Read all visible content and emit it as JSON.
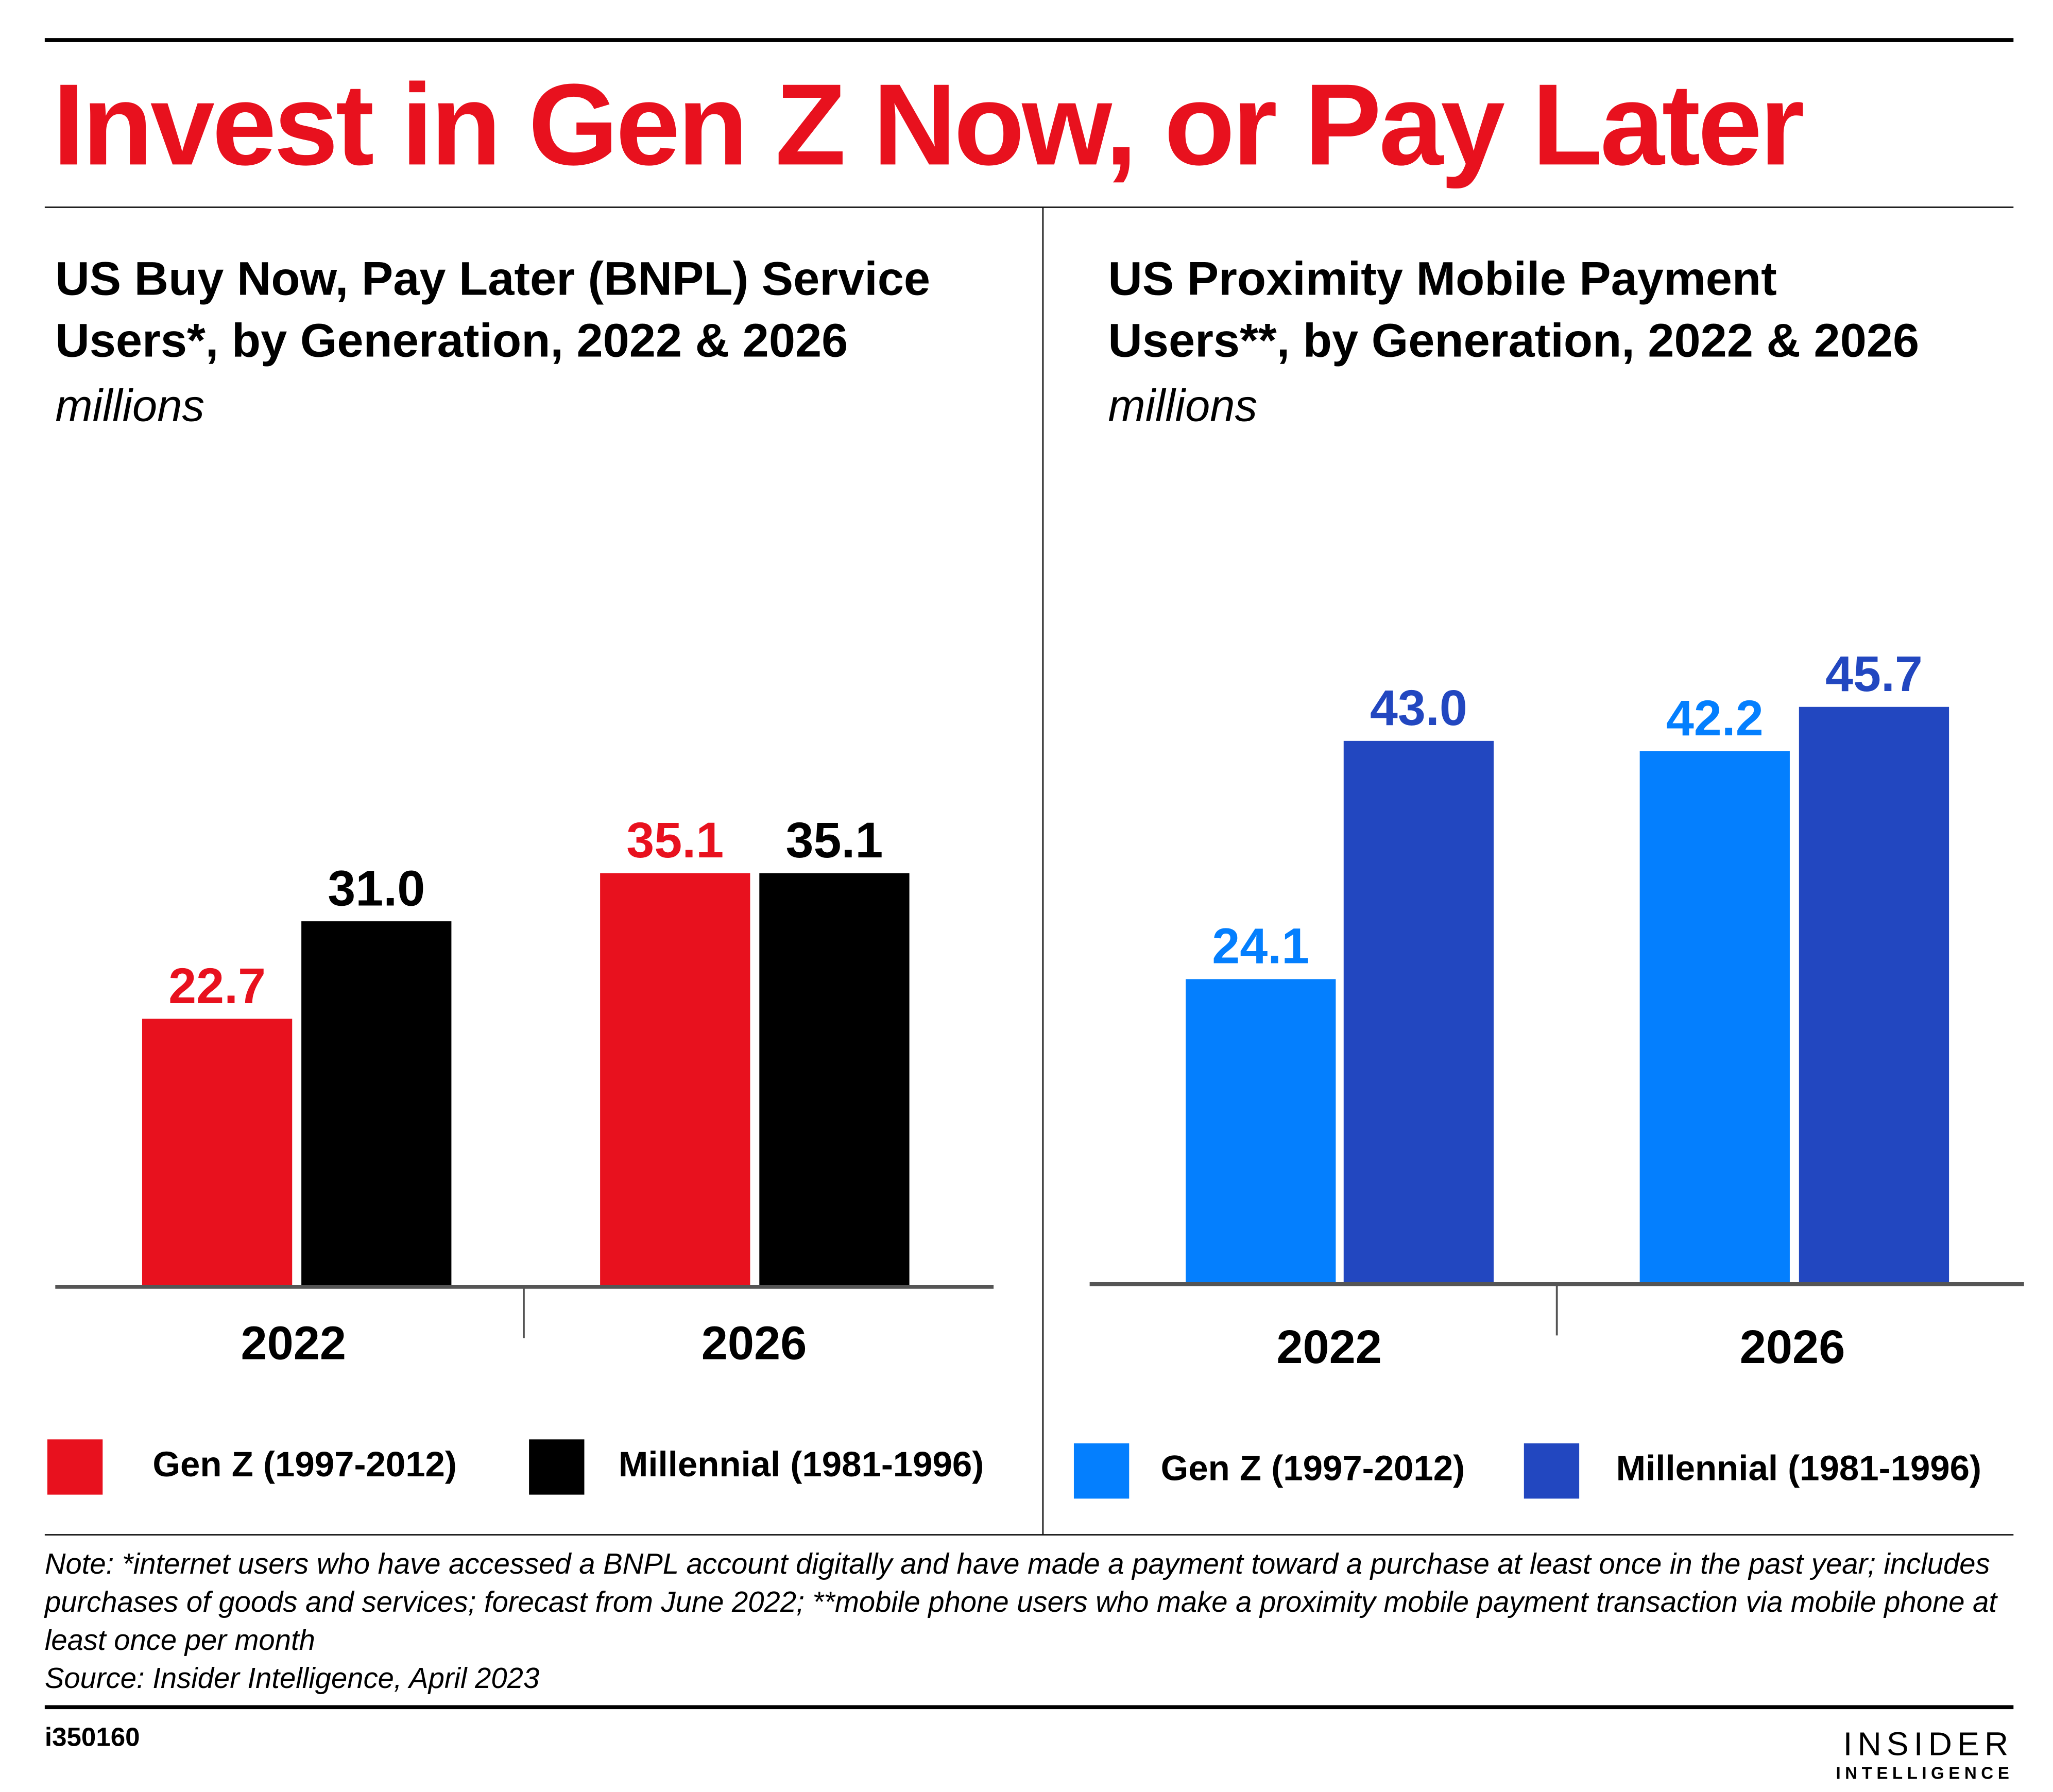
{
  "header": {
    "title": "Invest in Gen Z Now, or Pay Later"
  },
  "colors": {
    "title_red": "#e8111e",
    "bnpl_genz": "#e8111e",
    "bnpl_millennial": "#000000",
    "prox_genz": "#047ffe",
    "prox_millennial": "#2247c0"
  },
  "chart_data": [
    {
      "type": "bar",
      "title_line1": "US Buy Now, Pay Later (BNPL) Service",
      "title_line2": "Users*, by Generation, 2022 & 2026",
      "unit": "millions",
      "categories": [
        "2022",
        "2026"
      ],
      "series": [
        {
          "name": "Gen Z (1997-2012)",
          "color": "#e8111e",
          "values": [
            22.7,
            35.1
          ],
          "labels": [
            "22.7",
            "35.1"
          ]
        },
        {
          "name": "Millennial (1981-1996)",
          "color": "#000000",
          "values": [
            31.0,
            35.1
          ],
          "labels": [
            "31.0",
            "35.1"
          ]
        }
      ],
      "ylim": [
        0,
        56
      ],
      "grid": false,
      "legend": "bottom"
    },
    {
      "type": "bar",
      "title_line1": "US Proximity Mobile Payment",
      "title_line2": "Users**, by Generation, 2022 & 2026",
      "unit": "millions",
      "categories": [
        "2022",
        "2026"
      ],
      "series": [
        {
          "name": "Gen Z (1997-2012)",
          "color": "#047ffe",
          "values": [
            24.1,
            42.2
          ],
          "labels": [
            "24.1",
            "42.2"
          ]
        },
        {
          "name": "Millennial (1981-1996)",
          "color": "#2247c0",
          "values": [
            43.0,
            45.7
          ],
          "labels": [
            "43.0",
            "45.7"
          ]
        }
      ],
      "ylim": [
        0,
        52.2
      ],
      "grid": false,
      "legend": "bottom"
    }
  ],
  "footer": {
    "note": "Note: *internet users who have accessed a BNPL account digitally and have made a payment toward a purchase at least once in the past year; includes purchases of goods and services; forecast from June 2022; **mobile phone users who make a proximity mobile payment transaction via mobile phone at least once per month",
    "source": "Source: Insider Intelligence, April 2023",
    "id": "i350160",
    "logo_line1": "INSIDER",
    "logo_line2": "INTELLIGENCE"
  }
}
